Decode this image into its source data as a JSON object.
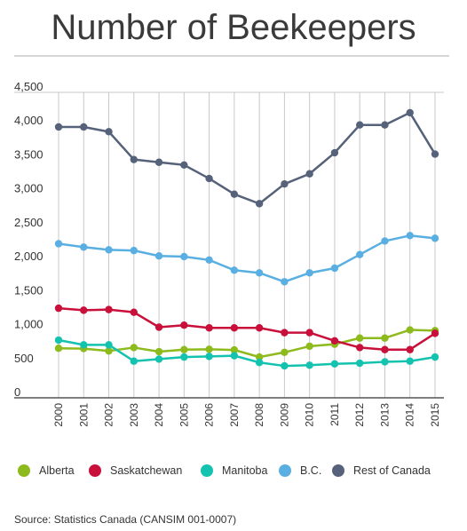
{
  "title": "Number of Beekeepers",
  "source": "Source: Statistics Canada (CANSIM 001-0007)",
  "chart_data": {
    "type": "line",
    "title": "Number of Beekeepers",
    "xlabel": "",
    "ylabel": "",
    "x": [
      "2000",
      "2001",
      "2002",
      "2003",
      "2004",
      "2005",
      "2006",
      "2007",
      "2008",
      "2009",
      "2010",
      "2011",
      "2012",
      "2013",
      "2014",
      "2015"
    ],
    "ylim": [
      0,
      4500
    ],
    "yticks": [
      0,
      500,
      1000,
      1500,
      2000,
      2500,
      3000,
      3500,
      4000,
      4500
    ],
    "ytick_labels": [
      "0",
      "500",
      "1,000",
      "1,500",
      "2,000",
      "2,500",
      "3,000",
      "3,500",
      "4,000",
      "4,500"
    ],
    "grid": "vertical",
    "legend_position": "bottom",
    "series": [
      {
        "name": "Alberta",
        "color": "#8dba1c",
        "values": [
          730,
          725,
          690,
          740,
          680,
          710,
          715,
          705,
          600,
          670,
          760,
          790,
          880,
          880,
          1000,
          990
        ]
      },
      {
        "name": "Saskatchewan",
        "color": "#c8103a",
        "values": [
          1320,
          1290,
          1300,
          1260,
          1040,
          1070,
          1030,
          1030,
          1030,
          960,
          960,
          840,
          740,
          710,
          710,
          950
        ]
      },
      {
        "name": "Manitoba",
        "color": "#14c2b0",
        "values": [
          850,
          780,
          780,
          540,
          570,
          600,
          610,
          620,
          520,
          470,
          480,
          500,
          510,
          530,
          540,
          600
        ]
      },
      {
        "name": "B.C.",
        "color": "#5aafe2",
        "values": [
          2270,
          2220,
          2180,
          2170,
          2090,
          2080,
          2030,
          1880,
          1840,
          1710,
          1840,
          1910,
          2110,
          2310,
          2390,
          2350
        ]
      },
      {
        "name": "Rest of Canada",
        "color": "#56627a",
        "values": [
          3990,
          3990,
          3920,
          3510,
          3470,
          3430,
          3230,
          3000,
          2860,
          3150,
          3300,
          3610,
          4020,
          4020,
          4200,
          3590
        ]
      }
    ]
  }
}
